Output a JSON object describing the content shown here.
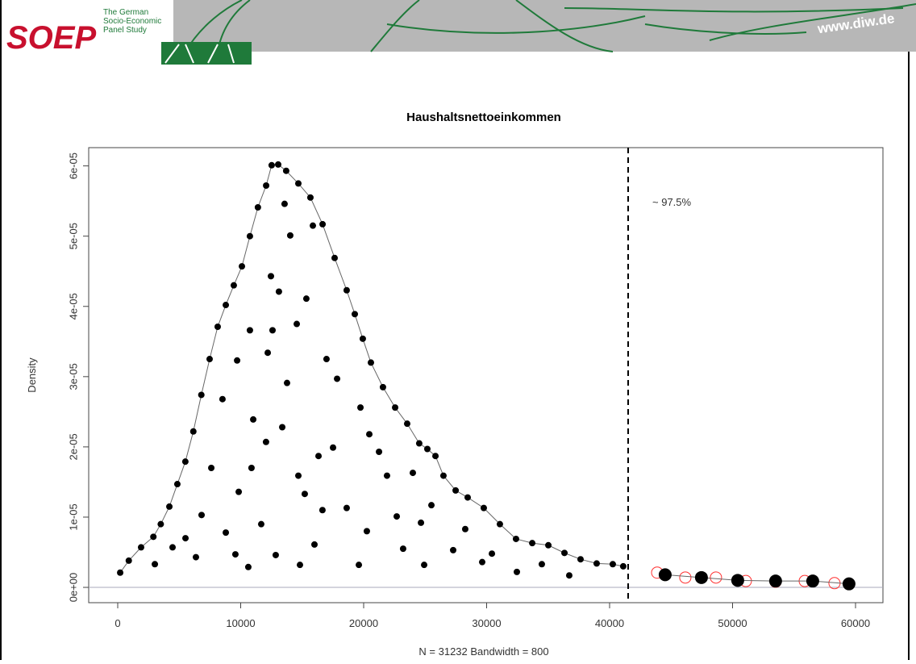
{
  "header": {
    "logo": "SOEP",
    "tagline": [
      "The German",
      "Socio-Economic",
      "Panel Study"
    ],
    "url": "www.diw.de"
  },
  "chart_data": {
    "type": "scatter",
    "title": "Haushaltsnettoeinkommen",
    "x_label": "N = 31232   Bandwidth = 800",
    "y_label": "Density",
    "annotation": "~ 97.5%",
    "cutoff_x": 41510,
    "xlim": [
      -2360,
      62230
    ],
    "ylim": [
      -2.18e-06,
      6.26e-05
    ],
    "xticks": [
      0,
      10000,
      20000,
      30000,
      40000,
      50000,
      60000
    ],
    "yticks": [
      {
        "value": 0,
        "label": "0e+00"
      },
      {
        "value": 1e-05,
        "label": "1e-05"
      },
      {
        "value": 2e-05,
        "label": "2e-05"
      },
      {
        "value": 3e-05,
        "label": "3e-05"
      },
      {
        "value": 4e-05,
        "label": "4e-05"
      },
      {
        "value": 5e-05,
        "label": "5e-05"
      },
      {
        "value": 6e-05,
        "label": "6e-05"
      }
    ],
    "series": [
      {
        "color": "#000000",
        "marker": "small",
        "line": true,
        "x": [
          200,
          900,
          1900,
          2900,
          3500,
          4200,
          4850,
          5500,
          6150,
          6800,
          7475,
          8130,
          8790,
          9440,
          10100,
          10750,
          11400,
          12070,
          12520,
          13050,
          13700,
          14690,
          15670,
          16660,
          17640,
          18620,
          19280,
          19930,
          20590,
          21570,
          22560,
          23540,
          24520,
          25180,
          25840,
          26490,
          27480,
          28460,
          29770,
          31080,
          32390,
          33710,
          35020,
          36330,
          37640,
          38950,
          40260,
          41110
        ],
        "values": [
          2.1e-06,
          3.8e-06,
          5.7e-06,
          7.2e-06,
          9e-06,
          1.15e-05,
          1.47e-05,
          1.79e-05,
          2.22e-05,
          2.74e-05,
          3.25e-05,
          3.71e-05,
          4.02e-05,
          4.3e-05,
          4.57e-05,
          5e-05,
          5.41e-05,
          5.72e-05,
          6.01e-05,
          6.02e-05,
          5.93e-05,
          5.75e-05,
          5.55e-05,
          5.17e-05,
          4.69e-05,
          4.23e-05,
          3.89e-05,
          3.54e-05,
          3.2e-05,
          2.85e-05,
          2.56e-05,
          2.33e-05,
          2.05e-05,
          1.97e-05,
          1.87e-05,
          1.59e-05,
          1.38e-05,
          1.28e-05,
          1.13e-05,
          9e-06,
          6.9e-06,
          6.3e-06,
          6e-06,
          4.9e-06,
          4e-06,
          3.4e-06,
          3.3e-06,
          3e-06
        ]
      },
      {
        "color": "#000000",
        "marker": "small",
        "line": false,
        "x": [
          3020,
          4460,
          5510,
          6360,
          6820,
          7610,
          8520,
          8790,
          9570,
          9710,
          9840,
          10620,
          10750,
          10880,
          11020,
          11670,
          12060,
          12200,
          12460,
          12590,
          12850,
          13110,
          13380,
          13570,
          13770,
          14030,
          14560,
          14690,
          14820,
          15210,
          15340,
          15870,
          16000,
          16330,
          16650,
          16980,
          17510,
          17840,
          18620,
          19610,
          19740,
          20260,
          20460,
          21250,
          21900,
          22690,
          23210,
          24000,
          24660,
          24920,
          25510,
          27280,
          28260,
          29640,
          30430,
          32460,
          34490,
          36720
        ],
        "values": [
          3.3e-06,
          5.7e-06,
          7e-06,
          4.3e-06,
          1.03e-05,
          1.7e-05,
          2.68e-05,
          7.8e-06,
          4.7e-06,
          3.23e-05,
          1.36e-05,
          2.9e-06,
          3.66e-05,
          1.7e-05,
          2.39e-05,
          9e-06,
          2.07e-05,
          3.34e-05,
          4.43e-05,
          3.66e-05,
          4.6e-06,
          4.21e-05,
          2.28e-05,
          5.46e-05,
          2.91e-05,
          5.01e-05,
          3.75e-05,
          1.59e-05,
          3.2e-06,
          1.33e-05,
          4.11e-05,
          5.15e-05,
          6.1e-06,
          1.87e-05,
          1.1e-05,
          3.25e-05,
          1.99e-05,
          2.97e-05,
          1.13e-05,
          3.2e-06,
          2.56e-05,
          8e-06,
          2.18e-05,
          1.93e-05,
          1.59e-05,
          1.01e-05,
          5.5e-06,
          1.63e-05,
          9.2e-06,
          3.2e-06,
          1.17e-05,
          5.3e-06,
          8.3e-06,
          3.6e-06,
          4.8e-06,
          2.2e-06,
          3.3e-06,
          1.7e-06
        ]
      },
      {
        "color": "#ff3030",
        "marker": "open",
        "line": false,
        "x": [
          43870,
          46160,
          48650,
          51080,
          53500,
          55870,
          58290
        ],
        "values": [
          2.1e-06,
          1.4e-06,
          1.4e-06,
          9e-07,
          8e-07,
          9e-07,
          6e-07
        ]
      },
      {
        "color": "#000000",
        "marker": "large",
        "line": true,
        "x": [
          44520,
          47470,
          50420,
          53500,
          56520,
          59470
        ],
        "values": [
          1.8e-06,
          1.4e-06,
          1e-06,
          9e-07,
          9e-07,
          5e-07
        ]
      }
    ]
  }
}
